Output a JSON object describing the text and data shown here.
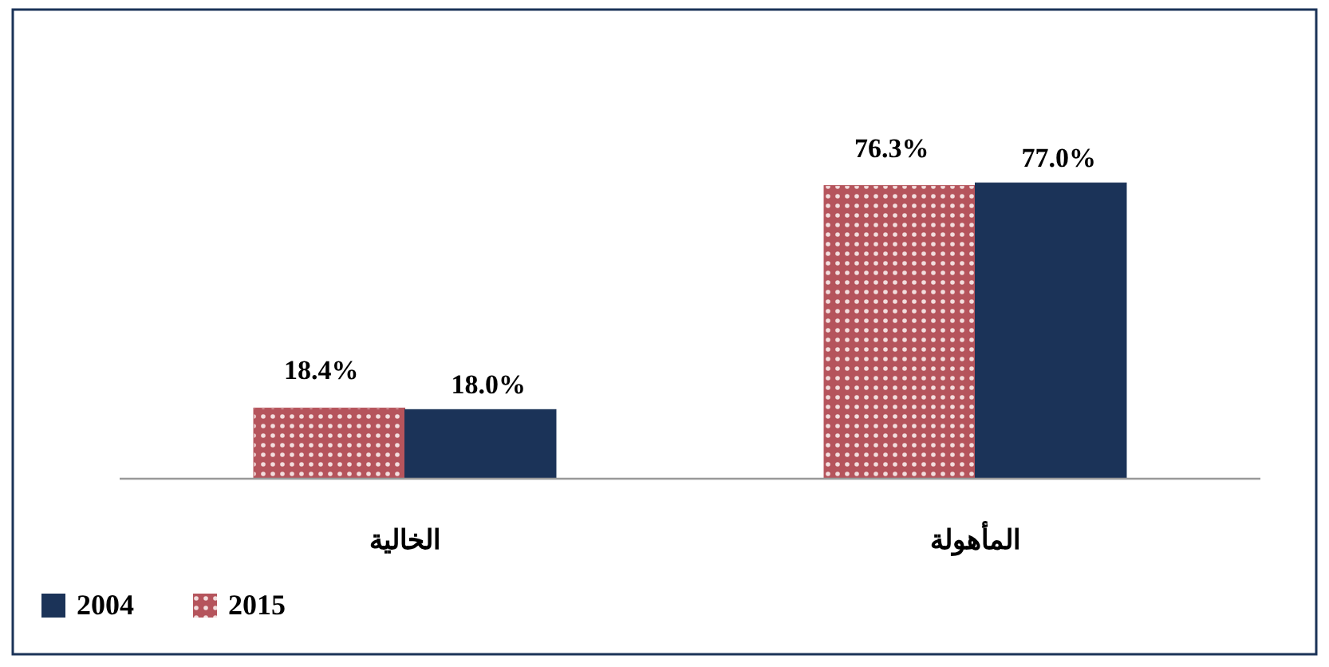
{
  "chart_data": {
    "type": "bar",
    "categories": [
      "الخالية",
      "المأهولة"
    ],
    "legend": "bottom left",
    "series": [
      {
        "name": "2015",
        "color": "#b5545c",
        "values": [
          18.4,
          76.3
        ],
        "value_labels": [
          "18.4%",
          "76.3%"
        ]
      },
      {
        "name": "2004",
        "color": "#1b3358",
        "values": [
          18.0,
          77.0
        ],
        "value_labels": [
          "18.0%",
          "77.0%"
        ]
      }
    ]
  }
}
